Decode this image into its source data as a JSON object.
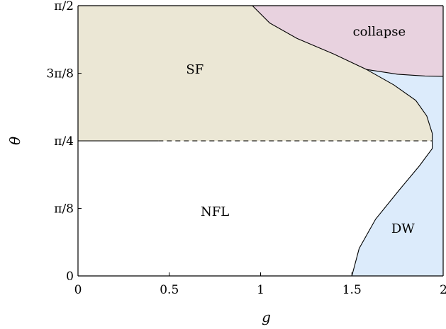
{
  "chart_data": {
    "type": "area",
    "title": "",
    "xlabel": "g",
    "ylabel": "θ",
    "xlim": [
      0,
      2
    ],
    "ylim": [
      0,
      1.5708
    ],
    "x_ticks": [
      {
        "value": 0,
        "label": "0"
      },
      {
        "value": 0.5,
        "label": "0.5"
      },
      {
        "value": 1,
        "label": "1"
      },
      {
        "value": 1.5,
        "label": "1.5"
      },
      {
        "value": 2,
        "label": "2"
      }
    ],
    "y_ticks": [
      {
        "value": 0,
        "label": "0"
      },
      {
        "value": 0.3927,
        "label": "π/8"
      },
      {
        "value": 0.7854,
        "label": "π/4"
      },
      {
        "value": 1.1781,
        "label": "3π/8"
      },
      {
        "value": 1.5708,
        "label": "π/2"
      }
    ],
    "regions": [
      {
        "name": "SF",
        "label": "SF",
        "color": "#ebe7d5",
        "label_at": [
          0.64,
          1.2
        ],
        "boundary": [
          [
            0,
            0.785
          ],
          [
            0.44,
            0.785
          ],
          [
            1.94,
            0.785
          ],
          [
            1.94,
            0.83
          ],
          [
            1.91,
            0.93
          ],
          [
            1.85,
            1.02
          ],
          [
            1.73,
            1.11
          ],
          [
            1.58,
            1.2
          ],
          [
            1.4,
            1.29
          ],
          [
            1.2,
            1.38
          ],
          [
            1.05,
            1.47
          ],
          [
            0.955,
            1.5708
          ],
          [
            0,
            1.5708
          ]
        ]
      },
      {
        "name": "collapse",
        "label": "collapse",
        "color": "#e8d2df",
        "label_at": [
          1.65,
          1.42
        ],
        "boundary": [
          [
            0.955,
            1.5708
          ],
          [
            1.05,
            1.47
          ],
          [
            1.2,
            1.38
          ],
          [
            1.4,
            1.29
          ],
          [
            1.58,
            1.2
          ],
          [
            1.75,
            1.172
          ],
          [
            1.9,
            1.162
          ],
          [
            2,
            1.16
          ],
          [
            2,
            1.5708
          ]
        ]
      },
      {
        "name": "DW",
        "label": "DW",
        "color": "#dcebfb",
        "label_at": [
          1.78,
          0.275
        ],
        "boundary": [
          [
            1.5,
            0
          ],
          [
            1.54,
            0.16
          ],
          [
            1.63,
            0.33
          ],
          [
            1.76,
            0.5
          ],
          [
            1.87,
            0.64
          ],
          [
            1.94,
            0.74
          ],
          [
            1.94,
            0.785
          ],
          [
            1.94,
            0.83
          ],
          [
            1.91,
            0.93
          ],
          [
            1.85,
            1.02
          ],
          [
            1.73,
            1.11
          ],
          [
            1.58,
            1.2
          ],
          [
            1.75,
            1.172
          ],
          [
            1.9,
            1.162
          ],
          [
            2,
            1.16
          ],
          [
            2,
            0
          ]
        ]
      },
      {
        "name": "NFL",
        "label": "NFL",
        "color": "#ffffff",
        "label_at": [
          0.75,
          0.375
        ],
        "boundary": []
      }
    ],
    "boundaries": [
      {
        "name": "sf-nfl-solid",
        "style": "solid",
        "points": [
          [
            0,
            0.785
          ],
          [
            0.44,
            0.785
          ]
        ]
      },
      {
        "name": "sf-nfl-dashed",
        "style": "dashed",
        "points": [
          [
            0.44,
            0.785
          ],
          [
            1.94,
            0.785
          ]
        ]
      },
      {
        "name": "collapse-boundary",
        "style": "solid",
        "points": [
          [
            0.955,
            1.5708
          ],
          [
            1.05,
            1.47
          ],
          [
            1.2,
            1.38
          ],
          [
            1.4,
            1.29
          ],
          [
            1.58,
            1.2
          ],
          [
            1.75,
            1.172
          ],
          [
            1.9,
            1.162
          ],
          [
            2,
            1.16
          ]
        ]
      },
      {
        "name": "sf-dw-boundary",
        "style": "solid",
        "points": [
          [
            1.58,
            1.2
          ],
          [
            1.73,
            1.11
          ],
          [
            1.85,
            1.02
          ],
          [
            1.91,
            0.93
          ],
          [
            1.94,
            0.83
          ],
          [
            1.94,
            0.785
          ],
          [
            1.94,
            0.74
          ],
          [
            1.87,
            0.64
          ],
          [
            1.76,
            0.5
          ],
          [
            1.63,
            0.33
          ],
          [
            1.54,
            0.16
          ],
          [
            1.5,
            0
          ]
        ]
      }
    ],
    "grid": false,
    "legend": "none"
  }
}
